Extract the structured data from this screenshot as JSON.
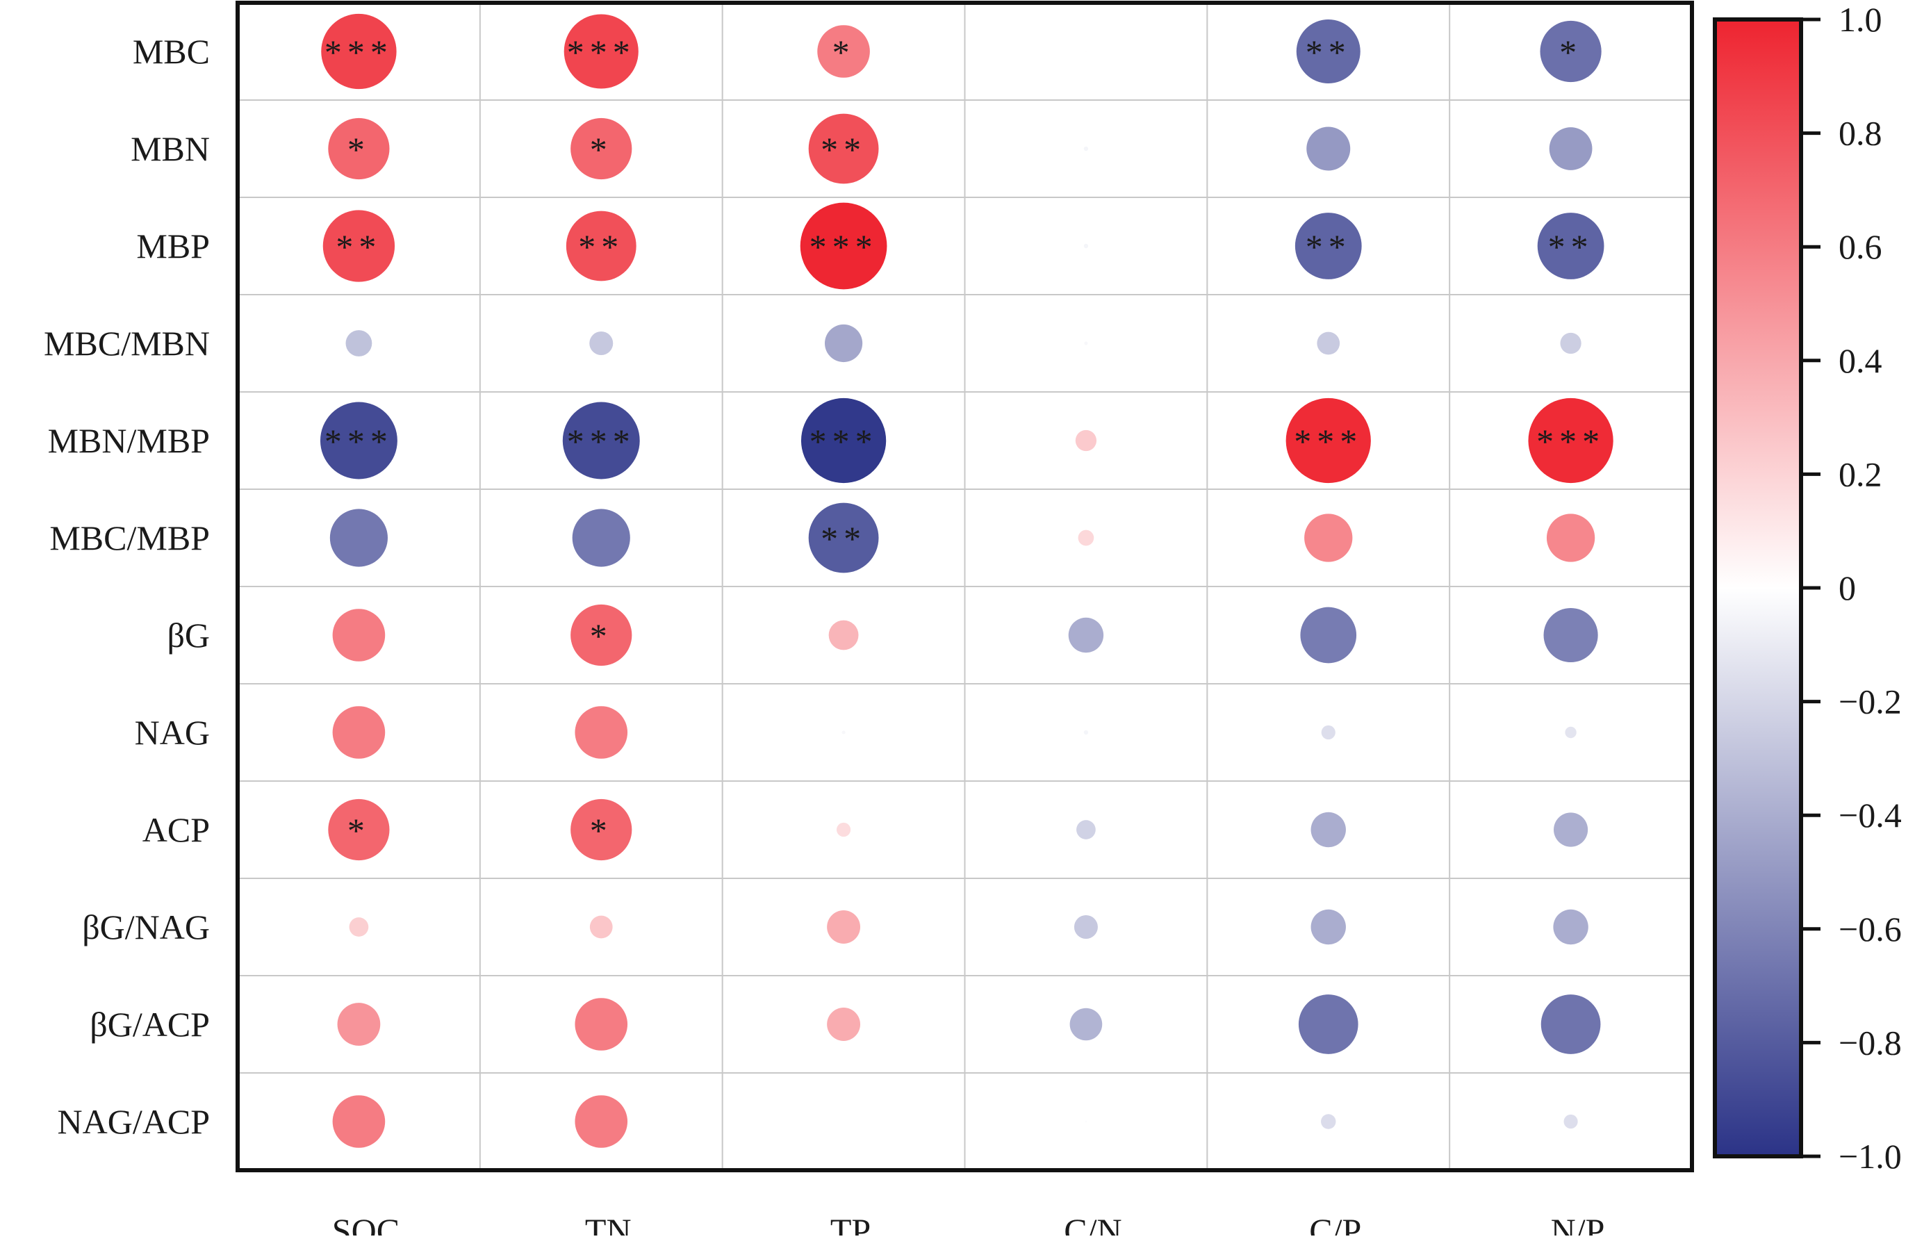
{
  "chart_data": {
    "type": "heatmap",
    "title": "",
    "xlabel": "",
    "ylabel": "",
    "x_categories": [
      "SOC",
      "TN",
      "TP",
      "C/N",
      "C/P",
      "N/P"
    ],
    "y_categories": [
      "MBC",
      "MBN",
      "MBP",
      "MBC/MBN",
      "MBN/MBP",
      "MBC/MBP",
      "βG",
      "NAG",
      "ACP",
      "βG/NAG",
      "βG/ACP",
      "NAG/ACP"
    ],
    "values": [
      [
        0.86,
        0.85,
        0.6,
        0.01,
        -0.73,
        -0.7
      ],
      [
        0.7,
        0.7,
        0.8,
        -0.05,
        -0.5,
        -0.49
      ],
      [
        0.82,
        0.8,
        0.99,
        -0.05,
        -0.76,
        -0.76
      ],
      [
        -0.3,
        -0.27,
        -0.43,
        -0.04,
        -0.26,
        -0.24
      ],
      [
        -0.88,
        -0.88,
        -0.97,
        0.24,
        0.97,
        0.97
      ],
      [
        -0.66,
        -0.66,
        -0.8,
        0.18,
        0.55,
        0.55
      ],
      [
        0.6,
        0.7,
        0.34,
        -0.4,
        -0.64,
        -0.62
      ],
      [
        0.6,
        0.6,
        -0.04,
        -0.05,
        -0.16,
        -0.13
      ],
      [
        0.7,
        0.7,
        0.16,
        -0.22,
        -0.4,
        -0.39
      ],
      [
        0.22,
        0.26,
        0.38,
        -0.27,
        -0.4,
        -0.4
      ],
      [
        0.49,
        0.6,
        0.38,
        -0.37,
        -0.68,
        -0.68
      ],
      [
        0.6,
        0.6,
        0.0,
        -0.02,
        -0.17,
        -0.16
      ]
    ],
    "significance": [
      [
        "***",
        "***",
        "*",
        "",
        "**",
        "*"
      ],
      [
        "*",
        "*",
        "**",
        "",
        "",
        ""
      ],
      [
        "**",
        "**",
        "***",
        "",
        "**",
        "**"
      ],
      [
        "",
        "",
        "",
        "",
        "",
        ""
      ],
      [
        "***",
        "***",
        "***",
        "",
        "***",
        "***"
      ],
      [
        "",
        "",
        "**",
        "",
        "",
        ""
      ],
      [
        "",
        "*",
        "",
        "",
        "",
        ""
      ],
      [
        "",
        "",
        "",
        "",
        "",
        ""
      ],
      [
        "*",
        "*",
        "",
        "",
        "",
        ""
      ],
      [
        "",
        "",
        "",
        "",
        "",
        ""
      ],
      [
        "",
        "",
        "",
        "",
        "",
        ""
      ],
      [
        "",
        "",
        "",
        "",
        "",
        ""
      ]
    ],
    "colorbar": {
      "range": [
        -1.0,
        1.0
      ],
      "ticks": [
        1.0,
        0.8,
        0.6,
        0.4,
        0.2,
        0,
        -0.2,
        -0.4,
        -0.6,
        -0.8,
        -1.0
      ],
      "tick_labels": [
        "1.0",
        "0.8",
        "0.6",
        "0.4",
        "0.2",
        "0",
        "−0.2",
        "−0.4",
        "−0.6",
        "−0.8",
        "−1.0"
      ],
      "positive_color": "#ee2430",
      "zero_color": "#ffffff",
      "negative_color": "#2b3387",
      "legend_position": "right"
    },
    "grid": true
  }
}
